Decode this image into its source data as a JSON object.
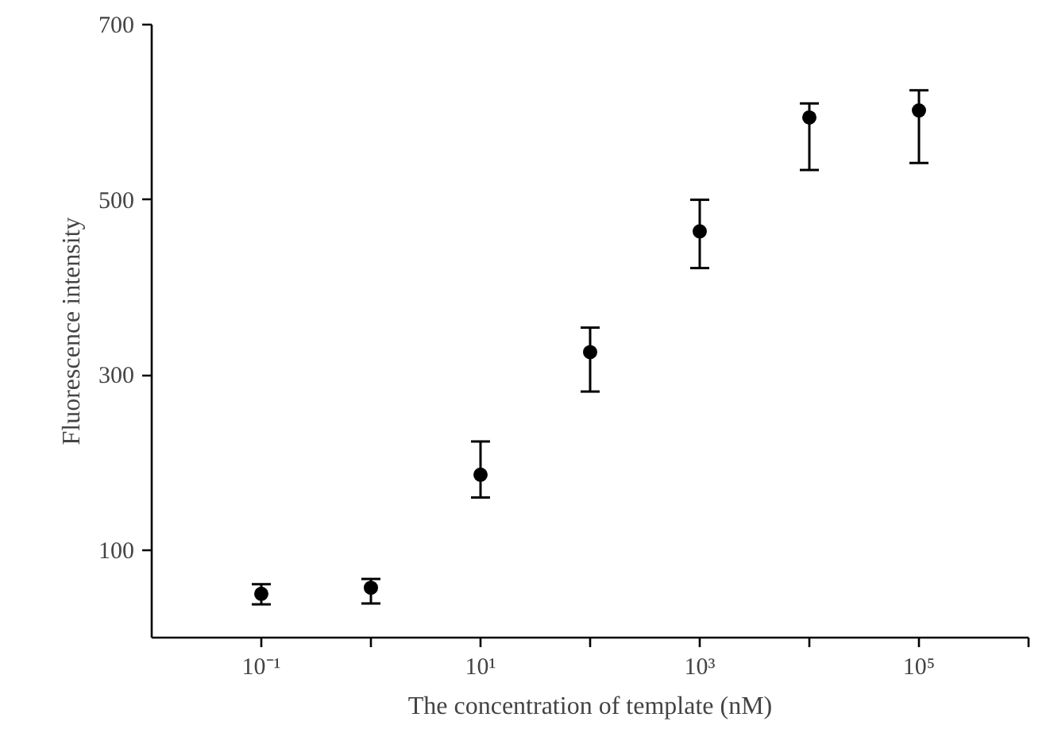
{
  "chart_data": {
    "type": "scatter",
    "xlabel": "The concentration of template (nM)",
    "ylabel": "Fluorescence intensity",
    "x": [
      0.1,
      1,
      10,
      100,
      1000,
      10000,
      100000
    ],
    "values": [
      50,
      57,
      186,
      326,
      464,
      594,
      602
    ],
    "errors": [
      [
        38,
        61
      ],
      [
        39,
        67
      ],
      [
        160,
        224
      ],
      [
        281,
        354
      ],
      [
        422,
        500
      ],
      [
        534,
        610
      ],
      [
        542,
        625
      ]
    ],
    "color": "#000000",
    "marker": "circle",
    "log": "x",
    "grid": false,
    "xlim": [
      0.01,
      1000000
    ],
    "xticks": [
      {
        "value": 0.1,
        "label": "10⁻¹"
      },
      {
        "value": 1,
        "label": null
      },
      {
        "value": 10,
        "label": "10¹"
      },
      {
        "value": 100,
        "label": null
      },
      {
        "value": 1000,
        "label": "10³"
      },
      {
        "value": 10000,
        "label": null
      },
      {
        "value": 100000,
        "label": "10⁵"
      },
      {
        "value": 1000000,
        "label": null
      }
    ],
    "ylim": [
      0,
      700
    ],
    "yticks": [
      100,
      300,
      500,
      700
    ]
  }
}
